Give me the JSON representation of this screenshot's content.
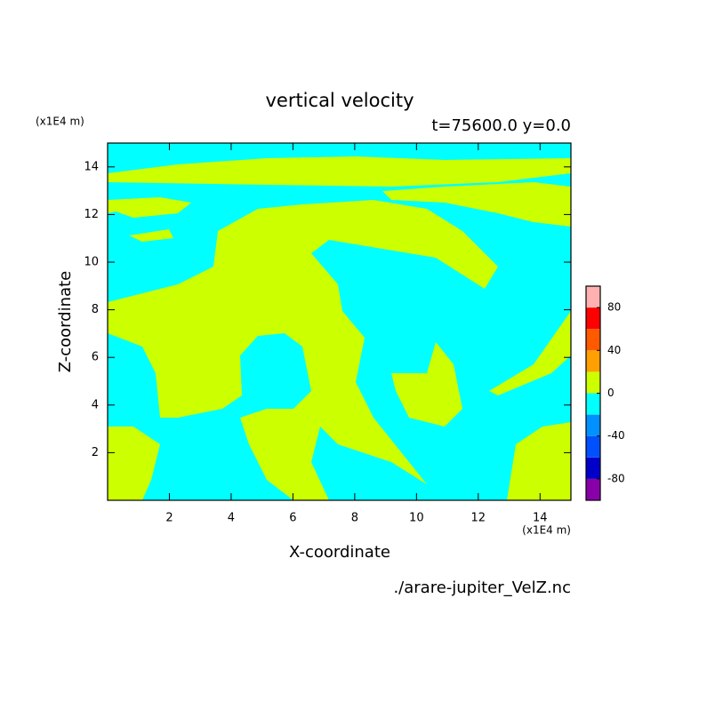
{
  "chart_data": {
    "type": "contour",
    "title": "vertical velocity",
    "subtitle": "t=75600.0 y=0.0",
    "x_label": "X-coordinate",
    "y_label": "Z-coordinate",
    "x_unit": "(x1E4 m)",
    "y_unit": "(x1E4 m)",
    "source": "./arare-jupiter_VelZ.nc",
    "xlim": [
      0,
      15
    ],
    "ylim": [
      0,
      15
    ],
    "xticks": [
      2,
      4,
      6,
      8,
      10,
      12,
      14
    ],
    "yticks": [
      2,
      4,
      6,
      8,
      10,
      12,
      14
    ],
    "colorbar": {
      "levels": [
        -100,
        -80,
        -60,
        -40,
        -20,
        0,
        20,
        40,
        60,
        80,
        100
      ],
      "colors": [
        "#8a00a8",
        "#0000c8",
        "#0050ff",
        "#0090ff",
        "#00ffff",
        "#ccff00",
        "#ffa000",
        "#ff5a00",
        "#ff0000",
        "#ffb0b0"
      ],
      "ticks": [
        -80,
        -40,
        0,
        40,
        80
      ]
    }
  }
}
